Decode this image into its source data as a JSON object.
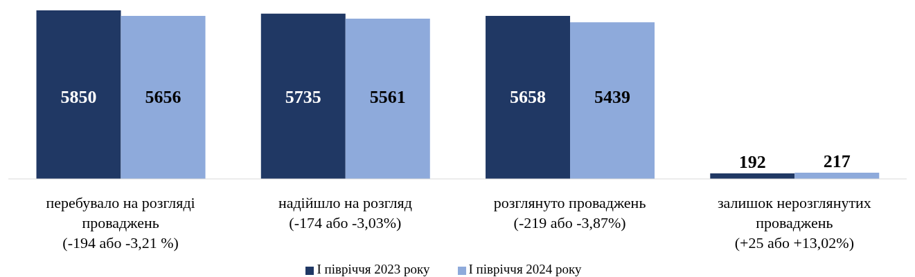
{
  "chart_data": {
    "type": "bar",
    "categories": [
      "перебувало на розгляді проваджень (-194 або -3,21 %)",
      "надійшло на розгляд (-174 або -3,03%)",
      "розглянуто проваджень (-219 або -3,87%)",
      "залишок нерозглянутих проваджень (+25 або +13,02%)"
    ],
    "series": [
      {
        "name": "І півріччя 2023 року",
        "color": "#203864",
        "values": [
          5850,
          5735,
          5658,
          192
        ]
      },
      {
        "name": "І півріччя 2024 року",
        "color": "#8eaadb",
        "values": [
          5656,
          5561,
          5439,
          217
        ]
      }
    ],
    "data_labels": true,
    "grid": false,
    "legend": "bottom"
  }
}
